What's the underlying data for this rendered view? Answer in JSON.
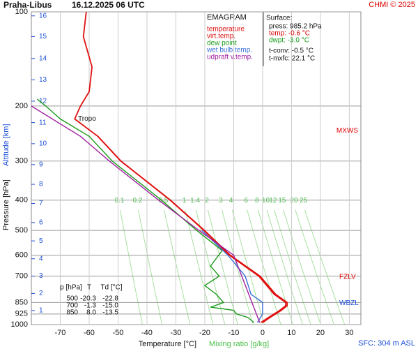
{
  "chart_data": {
    "type": "emagram",
    "title": "Praha-Libus",
    "subtitle": "16.12.2025 06 UTC",
    "credit": "CHMI © 2025",
    "y_label": "Pressure [hPa]",
    "y2_label": "Altitude [km]",
    "x_label": "Temperature [°C]",
    "x2_label": "Mixing ratio [g/kg]",
    "footer": "SFC: 304 m ASL",
    "log_y": true,
    "grid": true,
    "xlim": [
      -80,
      34
    ],
    "xticks": [
      -70,
      -60,
      -50,
      -40,
      -30,
      -20,
      -10,
      0,
      10,
      20,
      30
    ],
    "ylim": [
      1000,
      100
    ],
    "yticks": [
      100,
      200,
      300,
      400,
      500,
      600,
      700,
      850,
      925,
      1000
    ],
    "altitude_ticks": [
      {
        "value": 902,
        "label": "1"
      },
      {
        "value": 795,
        "label": "2"
      },
      {
        "value": 700,
        "label": "3"
      },
      {
        "value": 616,
        "label": "4"
      },
      {
        "value": 540,
        "label": "5"
      },
      {
        "value": 472,
        "label": "6"
      },
      {
        "value": 410,
        "label": "7"
      },
      {
        "value": 356,
        "label": "8"
      },
      {
        "value": 308,
        "label": "9"
      },
      {
        "value": 264,
        "label": "10"
      },
      {
        "value": 226,
        "label": "11"
      },
      {
        "value": 193,
        "label": "12"
      },
      {
        "value": 165,
        "label": "13"
      },
      {
        "value": 141,
        "label": "14"
      },
      {
        "value": 120,
        "label": "15"
      },
      {
        "value": 103,
        "label": "16"
      }
    ],
    "mixing_ratios": [
      0.1,
      0.2,
      0.5,
      1,
      1.4,
      2,
      3,
      4,
      6,
      8,
      10,
      12,
      15,
      20,
      25
    ],
    "legend_title": "EMAGRAM",
    "series": [
      {
        "name": "temperature",
        "color": "#e01010",
        "x": [
          -0.6,
          2,
          4,
          6,
          8,
          8,
          4,
          -1.3,
          -11.5,
          -20.3,
          -32,
          -49,
          -57,
          -65,
          -63,
          -60,
          -59,
          -62,
          -61
        ],
        "values": [
          985,
          950,
          925,
          900,
          870,
          850,
          800,
          700,
          600,
          500,
          400,
          300,
          250,
          220,
          200,
          180,
          150,
          120,
          100
        ]
      },
      {
        "name": "virt.temp.",
        "color": "#e01010",
        "x": [
          0,
          2.5,
          4.5,
          6.5,
          8.5,
          8.5,
          4.5,
          -0.9,
          -11.2,
          -20.1,
          -31.9,
          -49,
          -57
        ],
        "values": [
          985,
          950,
          925,
          900,
          870,
          850,
          800,
          700,
          600,
          500,
          400,
          300,
          250
        ]
      },
      {
        "name": "dew point",
        "color": "#1a9a1a",
        "x": [
          -3,
          -5,
          -9,
          -10,
          -18,
          -13.5,
          -16,
          -20,
          -15,
          -18,
          -14,
          -22.8,
          -35,
          -52,
          -60,
          -70,
          -75,
          -78
        ],
        "values": [
          985,
          950,
          925,
          900,
          880,
          850,
          800,
          750,
          700,
          650,
          580,
          500,
          400,
          300,
          250,
          220,
          200,
          190
        ]
      },
      {
        "name": "wet bulb temp.",
        "color": "#3a6fd8",
        "x": [
          -1.8,
          0,
          0,
          -4,
          -6,
          -12,
          -21
        ],
        "values": [
          985,
          925,
          850,
          800,
          700,
          600,
          500
        ]
      },
      {
        "name": "udpraft v.temp.",
        "color": "#a020a0",
        "x": [
          -1,
          -10,
          -22,
          -36,
          -53,
          -63,
          -80
        ],
        "values": [
          985,
          600,
          500,
          400,
          300,
          250,
          200
        ]
      }
    ],
    "annotations": [
      "Tropo",
      "MXWS",
      "FZLV",
      "WBZL"
    ],
    "surface": [
      "Surface:",
      "press: 985.2 hPa",
      "temp: -0.6 °C",
      "dwpt: -3.0 °C",
      "t-conv: -0.5 °C",
      "t-mxfc: 22.1 °C"
    ],
    "levels_table": {
      "header": [
        "p [hPa]",
        "T",
        "Td [°C]"
      ],
      "rows": [
        [
          "500",
          "-20.3",
          "-22.8"
        ],
        [
          "700",
          "-1.3",
          "-15.0"
        ],
        [
          "850",
          "8.0",
          "-13.5"
        ]
      ]
    }
  }
}
